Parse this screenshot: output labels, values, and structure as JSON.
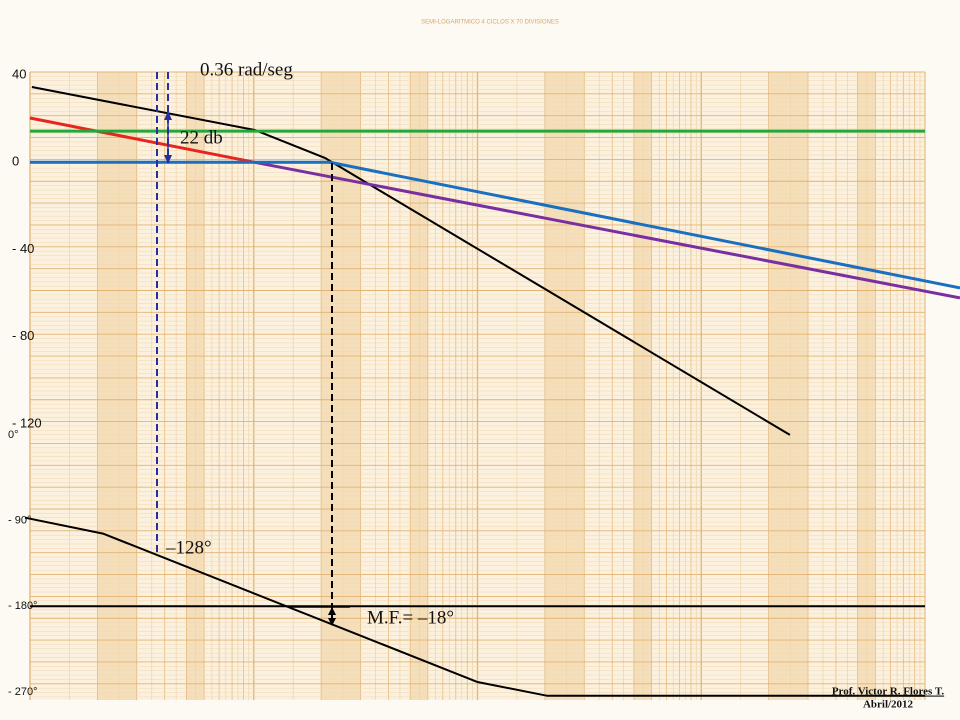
{
  "header": "SEMI-LOGARITMICO 4 CICLOS X 70 DIVISIONES",
  "annotations": [
    "0.36 rad/seg",
    "22 db",
    "–128°",
    "M.F.= –18°"
  ],
  "credit": [
    "Prof. Victor R. Flores T.",
    "Abril/2012"
  ],
  "chart_data": [
    {
      "type": "line",
      "xscale": "log",
      "xlim": [
        0.1,
        1000
      ],
      "ylim": [
        -120,
        40
      ],
      "yticks": [
        40,
        0,
        {
          "value": -40,
          "label": "- 40"
        },
        {
          "value": -80,
          "label": "- 80"
        },
        {
          "value": -120,
          "label": "- 120"
        }
      ],
      "series": [
        {
          "color": "#000000",
          "x": [
            0.102,
            1.01,
            2.08,
            249
          ],
          "values": [
            34.5,
            14.8,
            2.0,
            -125
          ]
        },
        {
          "color": "#e8251c",
          "x": [
            0.1,
            1.01
          ],
          "values": [
            20.3,
            0
          ]
        },
        {
          "color": "#7a2fa0",
          "x": [
            1.01,
            1433
          ],
          "values": [
            0,
            -62.2
          ]
        },
        {
          "color": "#1a6fc0",
          "x": [
            0.1,
            2.19,
            1433
          ],
          "values": [
            0,
            0,
            -57.6
          ]
        },
        {
          "color": "#22a83a",
          "x": [
            0.1,
            1000
          ],
          "values": [
            14.3,
            14.3
          ]
        }
      ]
    },
    {
      "type": "line",
      "xscale": "log",
      "xlim": [
        0.1,
        1000
      ],
      "ylim": [
        -270,
        0
      ],
      "yticks": [
        {
          "value": 0,
          "label": "0°"
        },
        {
          "value": -90,
          "label": "- 90°"
        },
        {
          "value": -180,
          "label": "- 180°"
        },
        {
          "value": -270,
          "label": "- 270°"
        }
      ],
      "series": [
        {
          "color": "#000000",
          "x": [
            0.095,
            0.212,
            10.0,
            20.5,
            1000
          ],
          "values": [
            -86.9,
            -103.6,
            -259.5,
            -274,
            -274
          ]
        },
        {
          "color": "#000000",
          "x": [
            0.1,
            1000
          ],
          "values": [
            -180,
            -180
          ]
        }
      ]
    }
  ]
}
